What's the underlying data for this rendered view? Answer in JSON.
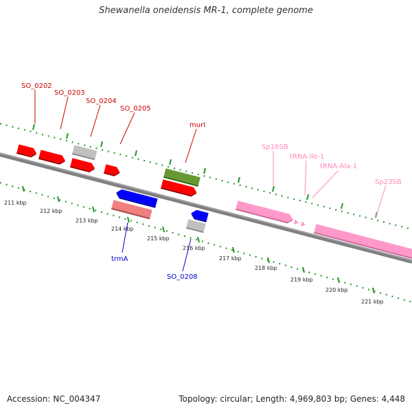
{
  "title": "Shewanella oneidensis MR-1, complete genome",
  "footer": {
    "accession": "Accession: NC_004347",
    "summary": "Topology: circular; Length: 4,969,803 bp; Genes: 4,448"
  },
  "colors": {
    "forward_gene": "#ff0000",
    "reverse_gene": "#0000ff",
    "rna": "#ff99cc",
    "pseudo": "#c0c0c0",
    "highlight": "#669933",
    "tick": "#339933",
    "backbone": "#808080",
    "label_forward": "#cc0000",
    "label_reverse": "#0000cc",
    "label_rna": "#ff88bb"
  },
  "kbp_labels": [
    "211 kbp",
    "212 kbp",
    "213 kbp",
    "214 kbp",
    "215 kbp",
    "216 kbp",
    "217 kbp",
    "218 kbp",
    "219 kbp",
    "220 kbp",
    "221 kbp"
  ],
  "feature_labels": {
    "so0202": "SO_0202",
    "so0203": "SO_0203",
    "so0204": "SO_0204",
    "so0205": "SO_0205",
    "murI": "murI",
    "sp16sb": "Sp16SB",
    "trnaIle": "tRNA-Ile-1",
    "trnaAla": "tRNA-Ala-1",
    "sp23sb": "Sp23SB",
    "trmA": "trmA",
    "so0208": "SO_0208"
  }
}
